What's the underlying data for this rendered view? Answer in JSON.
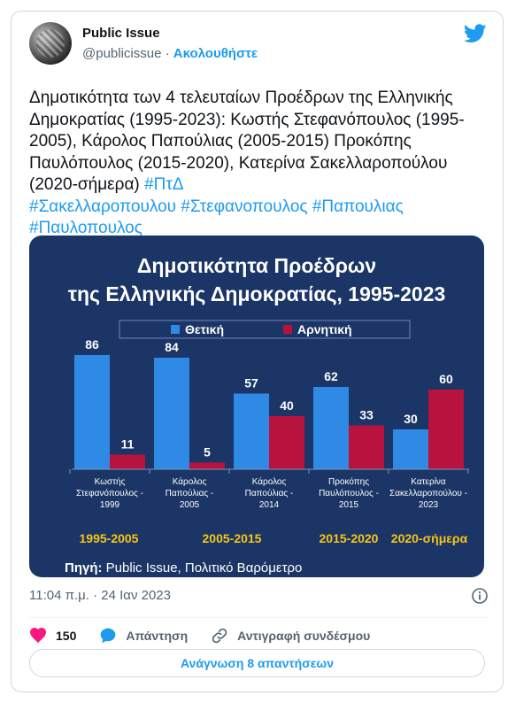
{
  "author": {
    "name": "Public Issue",
    "handle": "@publicissue",
    "separator": "·",
    "follow_label": "Ακολουθήστε"
  },
  "tweet": {
    "text": "Δημοτικότητα των 4 τελευταίων Προέδρων της Ελληνικής Δημοκρατίας (1995-2023): Κωστής Στεφανόπουλος (1995-2005), Κάρολος Παπούλιας (2005-2015) Προκόπης Παυλόπουλος (2015-2020), Κατερίνα Σακελλαροπούλου (2020-σήμερα) ",
    "hashtags": [
      "#ΠτΔ",
      "#Σακελλαροπουλου",
      "#Στεφανοπουλος",
      "#Παπουλιας",
      "#Παυλοπουλος"
    ]
  },
  "chart_data": {
    "type": "bar",
    "title": [
      "Δημοτικότητα Προέδρων",
      "της Ελληνικής Δημοκρατίας, 1995-2023"
    ],
    "categories": [
      [
        "Κωστής",
        "Στεφανόπουλος -",
        "1999"
      ],
      [
        "Κάρολος",
        "Παπούλιας -",
        "2005"
      ],
      [
        "Κάρολος",
        "Παπούλιας -",
        "2014"
      ],
      [
        "Προκόπης",
        "Παυλόπουλος -",
        "2015"
      ],
      [
        "Κατερίνα",
        "Σακελλαροπούλου -",
        "2023"
      ]
    ],
    "series": [
      {
        "name": "Θετική",
        "values": [
          86,
          84,
          57,
          62,
          30
        ],
        "color": "#2f8ae6"
      },
      {
        "name": "Αρνητική",
        "values": [
          11,
          5,
          40,
          33,
          60
        ],
        "color": "#b8123f"
      }
    ],
    "periods": [
      "1995-2005",
      "2005-2015",
      "2015-2020",
      "2020-σήμερα"
    ],
    "period_color": "#f5c518",
    "ylim": [
      0,
      100
    ],
    "source_label": "Πηγή:",
    "source_text": " Public Issue, Πολιτικό Βαρόμετρο",
    "background": "#1b3566",
    "legend_position": "top"
  },
  "meta": {
    "timestamp": "11:04 π.μ. · 24 Ιαν 2023"
  },
  "actions": {
    "likes": "150",
    "reply_label": "Απάντηση",
    "copy_link_label": "Αντιγραφή συνδέσμου"
  },
  "read_replies_label": "Ανάγνωση 8 απαντήσεων",
  "colors": {
    "accent": "#1d9bf0",
    "like": "#f91880",
    "muted": "#536471"
  }
}
